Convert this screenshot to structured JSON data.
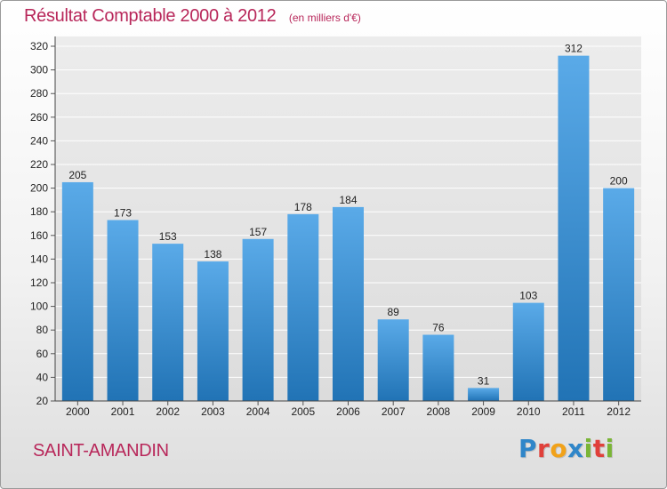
{
  "chart_data": {
    "type": "bar",
    "title": "Résultat Comptable 2000 à 2012",
    "subtitle": "(en milliers d'€)",
    "categories": [
      "2000",
      "2001",
      "2002",
      "2003",
      "2004",
      "2005",
      "2006",
      "2007",
      "2008",
      "2009",
      "2010",
      "2011",
      "2012"
    ],
    "values": [
      205,
      173,
      153,
      138,
      157,
      178,
      184,
      89,
      76,
      31,
      103,
      312,
      200
    ],
    "xlabel": "",
    "ylabel": "",
    "ylim": [
      20,
      320
    ],
    "yticks": [
      20,
      40,
      60,
      80,
      100,
      120,
      140,
      160,
      180,
      200,
      220,
      240,
      260,
      280,
      300,
      320
    ],
    "grid": true,
    "colors": {
      "bar_top": "#5aaae8",
      "bar_bottom": "#2173b5",
      "grid": "#ffffff",
      "plot_bg": "#e6e6e6",
      "title": "#b8275a"
    }
  },
  "footer": {
    "commune": "SAINT-AMANDIN",
    "brand": "Proxiti",
    "brand_letters": [
      {
        "char": "P",
        "color": "#2f86c9"
      },
      {
        "char": "r",
        "color": "#e0403a"
      },
      {
        "char": "o",
        "color": "#f1a21a"
      },
      {
        "char": "x",
        "color": "#2f86c9"
      },
      {
        "char": "i",
        "color": "#7ab536"
      },
      {
        "char": "t",
        "color": "#e0403a"
      },
      {
        "char": "i",
        "color": "#7ab536"
      }
    ]
  }
}
